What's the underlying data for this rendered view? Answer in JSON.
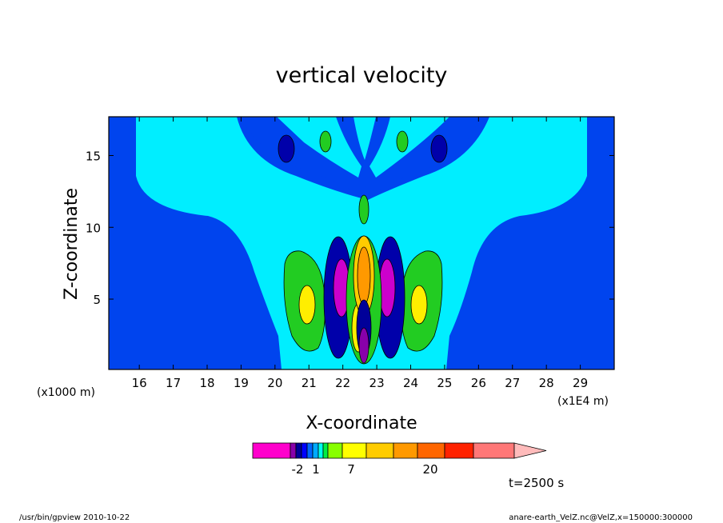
{
  "chart_data": {
    "type": "heatmap",
    "title": "vertical velocity",
    "xlabel": "X-coordinate",
    "ylabel": "Z-coordinate",
    "x_unit": "(x1E4 m)",
    "y_unit": "(x1000 m)",
    "xlim": [
      15.1,
      30
    ],
    "ylim": [
      0.1,
      17.7
    ],
    "x_ticks": [
      "16",
      "17",
      "18",
      "19",
      "20",
      "21",
      "22",
      "23",
      "24",
      "25",
      "26",
      "27",
      "28",
      "29"
    ],
    "y_ticks": [
      "5",
      "10",
      "15"
    ],
    "x_tick_values": [
      16,
      17,
      18,
      19,
      20,
      21,
      22,
      23,
      24,
      25,
      26,
      27,
      28,
      29
    ],
    "y_tick_values": [
      5,
      10,
      15
    ],
    "colorbar": {
      "tick_labels": [
        "-2",
        "1",
        "7",
        "20"
      ],
      "colors": [
        "#ff00cc",
        "#8800aa",
        "#000099",
        "#0000ff",
        "#0066ff",
        "#00aaff",
        "#00ffee",
        "#00ee44",
        "#88ff00",
        "#ffff00",
        "#ffcc00",
        "#ff9900",
        "#ff6600",
        "#ff2200",
        "#ff7777",
        "#ffbbbb"
      ]
    },
    "time_label": "t=2500 s"
  },
  "footer": {
    "left": "/usr/bin/gpview  2010-10-22",
    "right": "anare-earth_VelZ.nc@VelZ,x=150000:300000"
  }
}
